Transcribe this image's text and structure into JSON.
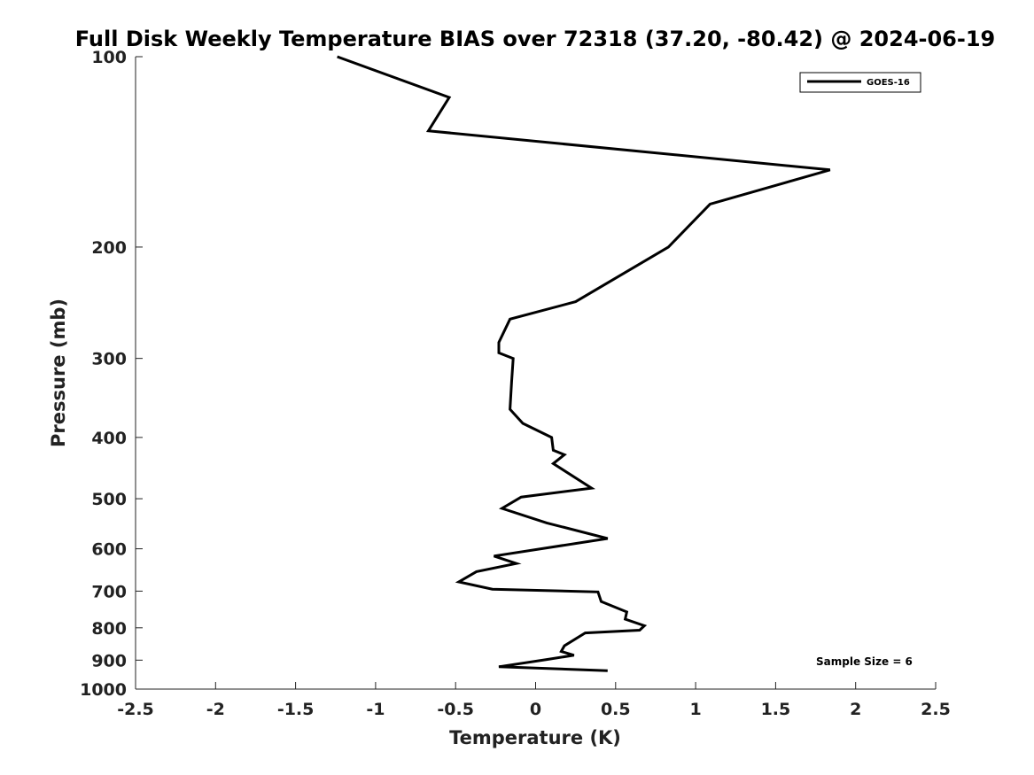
{
  "chart_data": {
    "type": "line",
    "title": "Full Disk Weekly Temperature BIAS over 72318 (37.20, -80.42) @ 2024-06-19",
    "xlabel": "Temperature (K)",
    "ylabel": "Pressure (mb)",
    "xlim": [
      -2.5,
      2.5
    ],
    "ylim": [
      1000,
      100
    ],
    "y_scale": "log",
    "y_reversed": true,
    "x_ticks": [
      "-2.5",
      "-2",
      "-1.5",
      "-1",
      "-0.5",
      "0",
      "0.5",
      "1",
      "1.5",
      "2",
      "2.5"
    ],
    "y_ticks": [
      "100",
      "200",
      "300",
      "400",
      "500",
      "600",
      "700",
      "800",
      "900",
      "1000"
    ],
    "grid": false,
    "legend_position": "top-right",
    "annotation": "Sample Size = 6",
    "series": [
      {
        "name": "GOES-16",
        "color": "#000000",
        "x": [
          -1.24,
          -0.54,
          -0.67,
          1.84,
          1.09,
          0.83,
          0.25,
          -0.16,
          -0.23,
          -0.23,
          -0.14,
          -0.15,
          -0.16,
          -0.08,
          0.1,
          0.11,
          0.18,
          0.11,
          0.35,
          -0.09,
          -0.21,
          0.07,
          0.45,
          -0.26,
          -0.12,
          -0.37,
          -0.48,
          -0.27,
          0.39,
          0.41,
          0.57,
          0.56,
          0.68,
          0.65,
          0.31,
          0.18,
          0.16,
          0.24,
          0.07,
          -0.23,
          0.45
        ],
        "y": [
          100,
          116,
          131,
          151,
          171,
          200,
          244,
          260,
          283,
          294,
          300,
          327,
          361,
          380,
          400,
          419,
          426,
          440,
          481,
          497,
          518,
          546,
          578,
          616,
          633,
          652,
          677,
          695,
          702,
          727,
          755,
          775,
          794,
          807,
          815,
          854,
          872,
          884,
          898,
          922,
          935
        ]
      }
    ]
  }
}
